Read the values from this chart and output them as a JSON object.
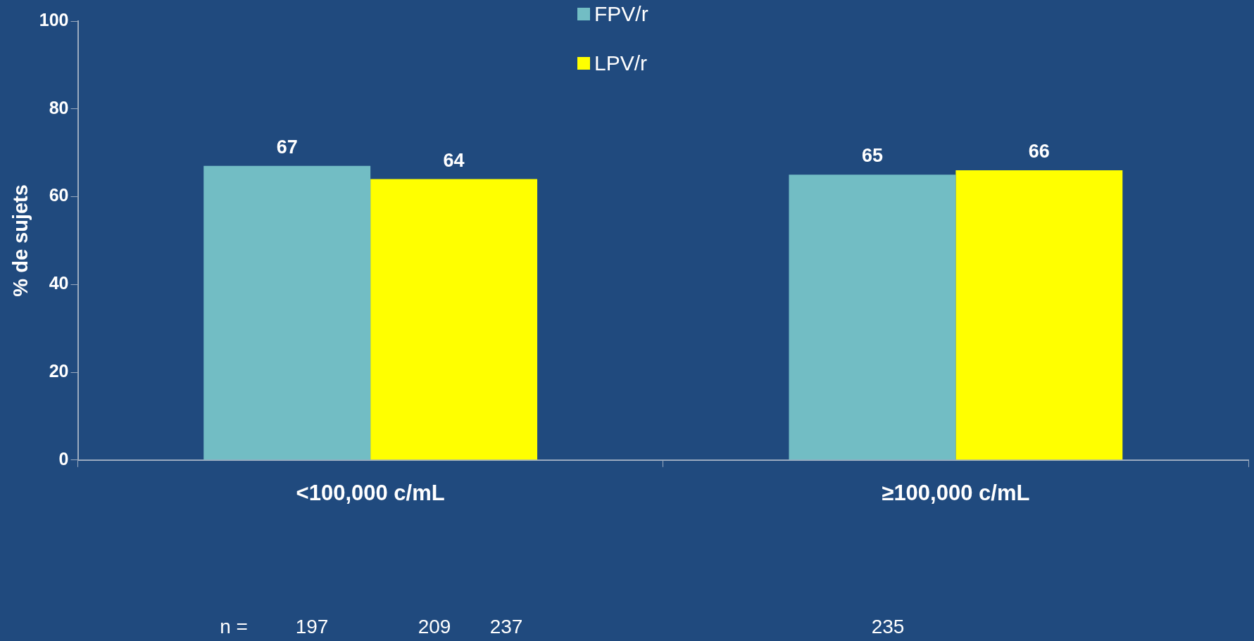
{
  "chart_data": {
    "type": "bar",
    "ylabel": "% de sujets",
    "categories": [
      "<100,000 c/mL",
      "≥100,000 c/mL"
    ],
    "series": [
      {
        "name": "FPV/r",
        "color": "#72bdc4",
        "values": [
          67,
          65
        ]
      },
      {
        "name": "LPV/r",
        "color": "#ffff00",
        "values": [
          64,
          66
        ]
      }
    ],
    "ylim": [
      0,
      100
    ],
    "yticks": [
      0,
      20,
      40,
      60,
      80,
      100
    ],
    "grid": false,
    "legend": "top",
    "data_labels": true,
    "annotations": [
      "n =",
      "197",
      "209",
      "237",
      "235"
    ]
  }
}
